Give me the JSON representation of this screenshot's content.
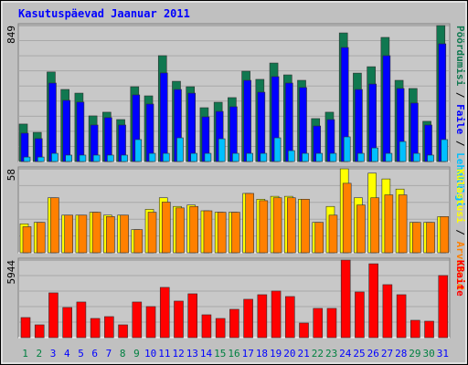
{
  "title": "Kasutuspäevad Jaanuar 2011",
  "separator": " / ",
  "chart_data": [
    {
      "type": "bar",
      "ylim": [
        0,
        849
      ],
      "yticks": [
        849
      ],
      "series": [
        {
          "name": "Pöördumisi",
          "color": "#107850",
          "values": [
            234,
            182,
            559,
            450,
            427,
            285,
            308,
            262,
            467,
            410,
            661,
            501,
            467,
            336,
            370,
            399,
            564,
            513,
            615,
            541,
            507,
            268,
            308,
            803,
            552,
            592,
            775,
            507,
            456,
            251,
            849
          ]
        },
        {
          "name": "Faile",
          "color": "#0000ff",
          "values": [
            177,
            143,
            490,
            382,
            371,
            228,
            274,
            228,
            416,
            359,
            553,
            450,
            427,
            279,
            313,
            342,
            507,
            433,
            530,
            490,
            462,
            222,
            262,
            712,
            450,
            484,
            661,
            456,
            365,
            228,
            735
          ]
        },
        {
          "name": "Lehekülgi",
          "color": "#00c0ff",
          "values": [
            28,
            28,
            51,
            40,
            40,
            40,
            40,
            40,
            137,
            51,
            51,
            148,
            51,
            51,
            142,
            51,
            51,
            51,
            148,
            68,
            51,
            51,
            51,
            154,
            51,
            85,
            51,
            125,
            51,
            40,
            137
          ]
        }
      ]
    },
    {
      "type": "bar",
      "ylim": [
        0,
        58
      ],
      "yticks": [
        58
      ],
      "series": [
        {
          "name": "Külastusi",
          "color": "#ffff00",
          "values": [
            20,
            21,
            38,
            26,
            26,
            28,
            26,
            26,
            16,
            30,
            38,
            32,
            33,
            29,
            28,
            28,
            41,
            37,
            39,
            39,
            37,
            21,
            32,
            58,
            38,
            55,
            51,
            44,
            21,
            21,
            25
          ]
        },
        {
          "name": "Arvuteid",
          "color": "#ff8000",
          "values": [
            18,
            21,
            38,
            26,
            26,
            28,
            25,
            26,
            16,
            28,
            35,
            31,
            32,
            29,
            28,
            28,
            41,
            36,
            38,
            38,
            37,
            21,
            26,
            48,
            33,
            38,
            40,
            40,
            21,
            21,
            25
          ]
        }
      ]
    },
    {
      "type": "bar",
      "ylim": [
        0,
        5944
      ],
      "yticks": [
        5944
      ],
      "categories": [
        "1",
        "2",
        "3",
        "4",
        "5",
        "6",
        "7",
        "8",
        "9",
        "10",
        "11",
        "12",
        "13",
        "14",
        "15",
        "16",
        "17",
        "18",
        "19",
        "20",
        "21",
        "22",
        "23",
        "24",
        "25",
        "26",
        "27",
        "28",
        "29",
        "30",
        "31"
      ],
      "category_colors": [
        "#008040",
        "#008040",
        "#0000ff",
        "#0000ff",
        "#0000ff",
        "#0000ff",
        "#0000ff",
        "#008040",
        "#008040",
        "#0000ff",
        "#0000ff",
        "#0000ff",
        "#0000ff",
        "#0000ff",
        "#008040",
        "#008040",
        "#0000ff",
        "#0000ff",
        "#0000ff",
        "#0000ff",
        "#0000ff",
        "#008040",
        "#008040",
        "#0000ff",
        "#0000ff",
        "#0000ff",
        "#0000ff",
        "#0000ff",
        "#008040",
        "#008040",
        "#0000ff"
      ],
      "series": [
        {
          "name": "KBaite",
          "color": "#ff0000",
          "values": [
            1540,
            980,
            3430,
            2310,
            2730,
            1470,
            1610,
            980,
            2730,
            2380,
            3850,
            2800,
            3360,
            1750,
            1470,
            2170,
            2940,
            3290,
            3570,
            3150,
            1120,
            2240,
            2240,
            5944,
            3500,
            5660,
            4060,
            3290,
            1330,
            1260,
            4760
          ]
        }
      ]
    }
  ]
}
